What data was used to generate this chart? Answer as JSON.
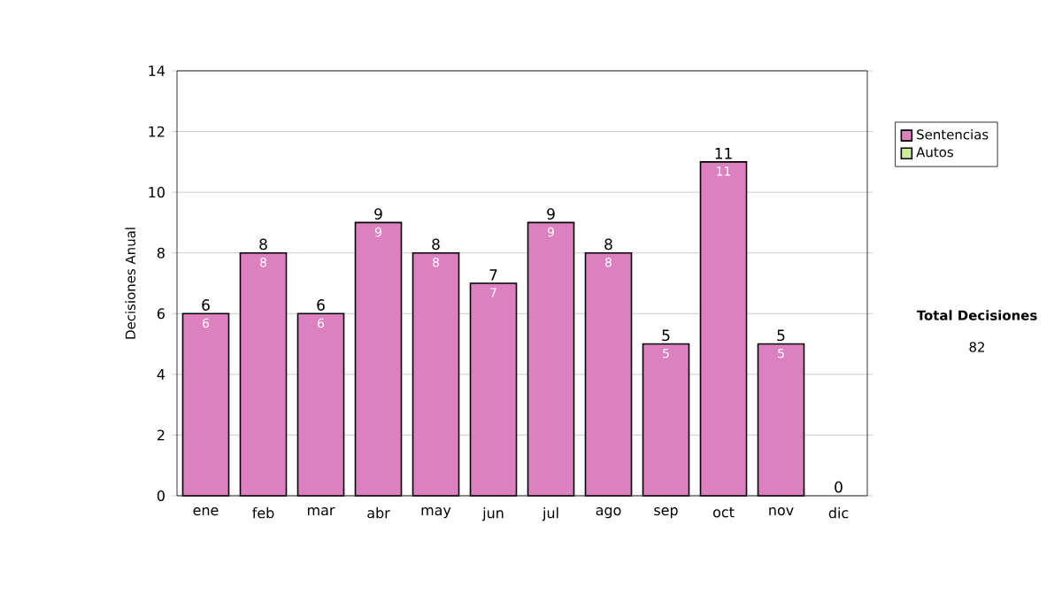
{
  "chart_data": {
    "type": "bar",
    "stacked": true,
    "ylabel": "Decisiones Anual",
    "categories": [
      "ene",
      "feb",
      "mar",
      "abr",
      "may",
      "jun",
      "jul",
      "ago",
      "sep",
      "oct",
      "nov",
      "dic"
    ],
    "series": [
      {
        "name": "Sentencias",
        "color": "#dd80c0",
        "values": [
          6,
          8,
          6,
          9,
          8,
          7,
          9,
          8,
          5,
          11,
          5,
          0
        ],
        "value_labels": [
          "6",
          "8",
          "6",
          "9",
          "8",
          "7",
          "9",
          "8",
          "5",
          "11",
          "5",
          null
        ]
      },
      {
        "name": "Autos",
        "color": "#ccee99",
        "values": [
          0,
          0,
          0,
          0,
          0,
          0,
          0,
          0,
          0,
          0,
          0,
          0
        ]
      }
    ],
    "totals": [
      "6",
      "8",
      "6",
      "9",
      "8",
      "7",
      "9",
      "8",
      "5",
      "11",
      "5",
      "0"
    ],
    "ylim": [
      0,
      14
    ],
    "yticks": [
      0,
      2,
      4,
      6,
      8,
      10,
      12,
      14
    ],
    "grid": "y",
    "legend": "right",
    "annotations": [
      "Total Decisiones",
      "82"
    ]
  }
}
